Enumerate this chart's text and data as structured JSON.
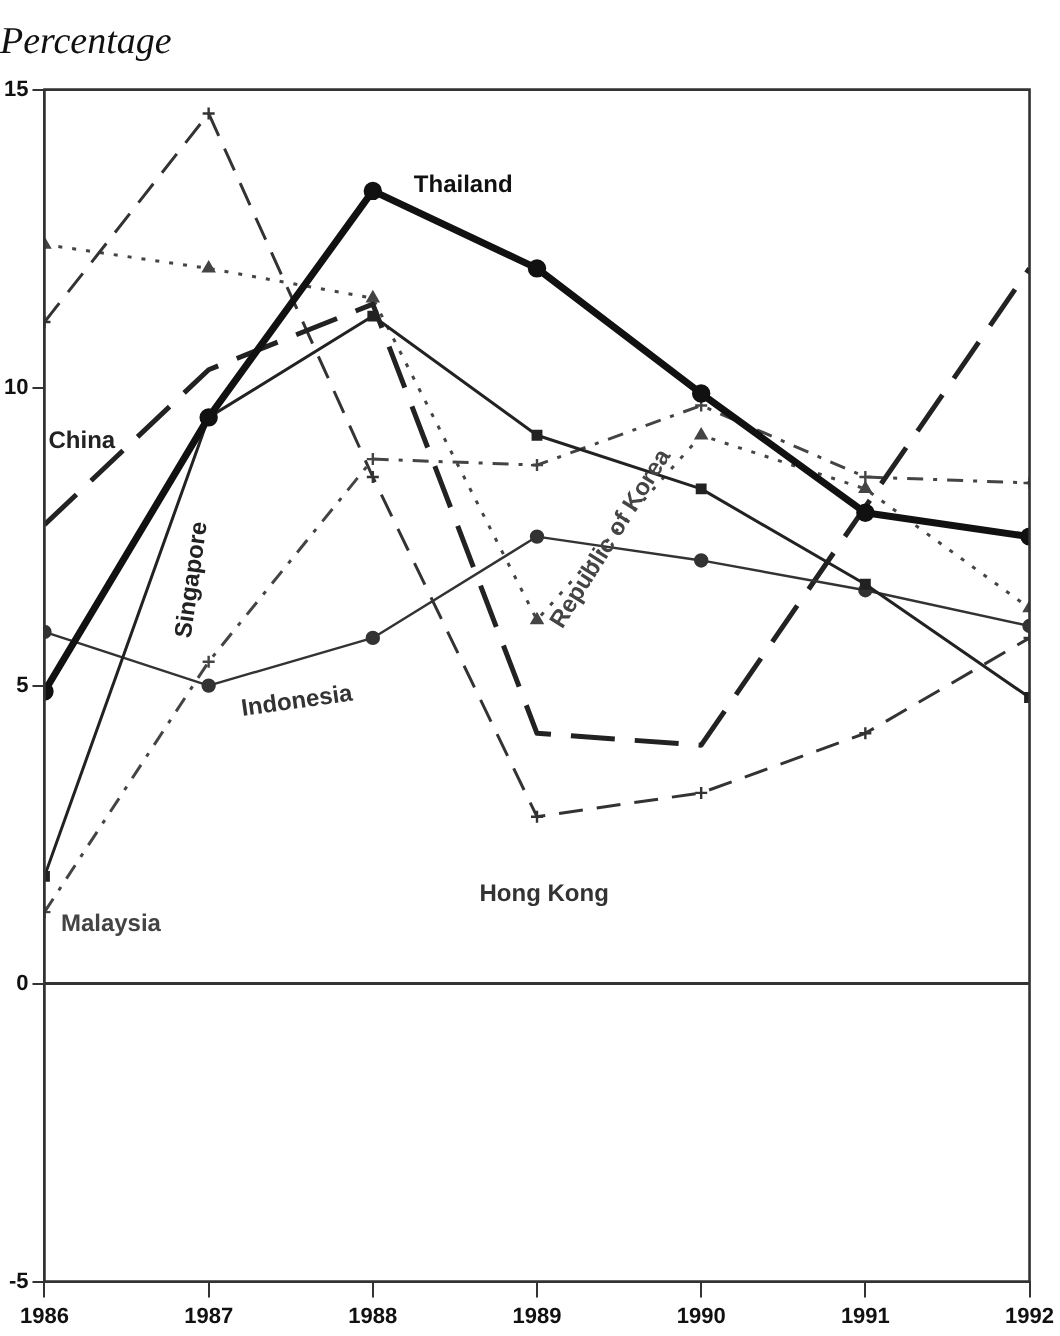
{
  "chart_data": {
    "type": "line",
    "ylabel": "Percentage",
    "x": [
      1986,
      1987,
      1988,
      1989,
      1990,
      1991,
      1992
    ],
    "xlim": [
      1986,
      1992
    ],
    "xticks": [
      1986,
      1987,
      1988,
      1989,
      1990,
      1991,
      1992
    ],
    "ylim": [
      -5,
      15
    ],
    "yticks": [
      -5,
      0,
      5,
      10,
      15
    ],
    "grid": false,
    "legend": false,
    "ref_lines": [
      {
        "axis": "y",
        "value": 0,
        "color": "#333333",
        "line_style": "solid"
      }
    ],
    "series": [
      {
        "name": "Thailand",
        "color": "#111111",
        "marker": "circle",
        "line_style": "solid",
        "values": [
          4.9,
          9.5,
          13.3,
          12.0,
          9.9,
          7.9,
          7.5
        ]
      },
      {
        "name": "Singapore",
        "color": "#222222",
        "marker": "square",
        "line_style": "solid",
        "values": [
          1.8,
          9.5,
          11.2,
          9.2,
          8.3,
          6.7,
          4.8
        ]
      },
      {
        "name": "Indonesia",
        "color": "#333333",
        "marker": "circle",
        "line_style": "solid",
        "values": [
          5.9,
          5.0,
          5.8,
          7.5,
          7.1,
          6.6,
          6.0
        ]
      },
      {
        "name": "China",
        "color": "#222222",
        "marker": "none",
        "line_style": "dashed",
        "values": [
          7.7,
          10.3,
          11.4,
          4.2,
          4.0,
          8.0,
          12.0
        ]
      },
      {
        "name": "Hong Kong",
        "color": "#333333",
        "marker": "cross",
        "line_style": "dashed",
        "values": [
          11.1,
          14.6,
          8.5,
          2.8,
          3.2,
          4.2,
          5.8
        ]
      },
      {
        "name": "Malaysia",
        "color": "#444444",
        "marker": "cross",
        "line_style": "dashed",
        "values": [
          1.2,
          5.4,
          8.8,
          8.7,
          9.7,
          8.5,
          8.4
        ]
      },
      {
        "name": "Republic of Korea",
        "color": "#444444",
        "marker": "triangle",
        "line_style": "dotted",
        "values": [
          12.4,
          12.0,
          11.5,
          6.1,
          9.2,
          8.3,
          6.3
        ]
      }
    ]
  }
}
